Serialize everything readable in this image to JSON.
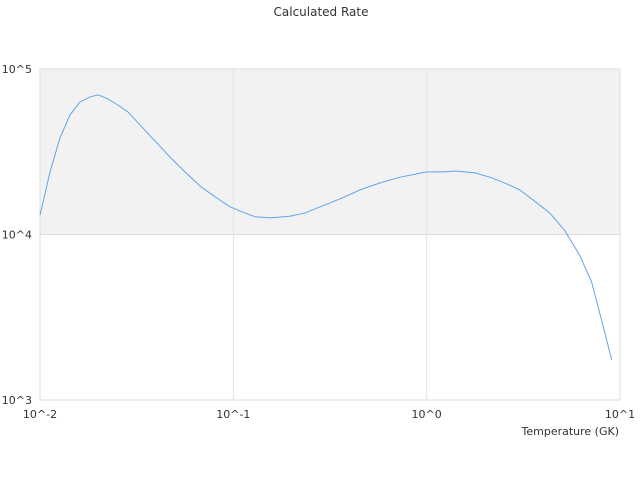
{
  "chart_data": {
    "type": "line",
    "title": "Calculated Rate",
    "x_label": "Temperature (GK)",
    "x": [
      0.01,
      0.01127,
      0.01268,
      0.01429,
      0.0161,
      0.01815,
      0.01995,
      0.0225,
      0.0253,
      0.0285,
      0.0329,
      0.0394,
      0.047,
      0.0562,
      0.0673,
      0.0804,
      0.0961,
      0.1148,
      0.1294,
      0.155,
      0.196,
      0.235,
      0.281,
      0.356,
      0.452,
      0.574,
      0.728,
      1,
      1.24,
      1.4,
      1.77,
      2.12,
      2.53,
      3.03,
      3.62,
      4.33,
      5.17,
      6.18,
      7.13,
      8.03,
      9.06
    ],
    "series": [
      {
        "color": "#5ea5ea",
        "values": [
          13100,
          23900,
          38300,
          52700,
          63200,
          67800,
          69700,
          65900,
          60600,
          55000,
          45900,
          36700,
          29400,
          23900,
          19600,
          16900,
          14700,
          13500,
          12800,
          12600,
          12900,
          13500,
          14700,
          16400,
          18600,
          20500,
          22200,
          23900,
          23900,
          24200,
          23600,
          22200,
          20500,
          18600,
          15900,
          13500,
          10600,
          7510,
          5160,
          3040,
          1750
        ]
      }
    ],
    "xscale": "log",
    "yscale": "log",
    "xlim": [
      0.01,
      10
    ],
    "ylim": [
      1000,
      100000
    ],
    "xticks": [
      {
        "value": 0.01,
        "label": "10^-2"
      },
      {
        "value": 0.1,
        "label": "10^-1"
      },
      {
        "value": 1,
        "label": "10^0"
      },
      {
        "value": 10,
        "label": "10^1"
      }
    ],
    "yticks": [
      {
        "value": 1000,
        "label": "10^3"
      },
      {
        "value": 10000,
        "label": "10^4"
      },
      {
        "value": 100000,
        "label": "10^5"
      }
    ]
  }
}
